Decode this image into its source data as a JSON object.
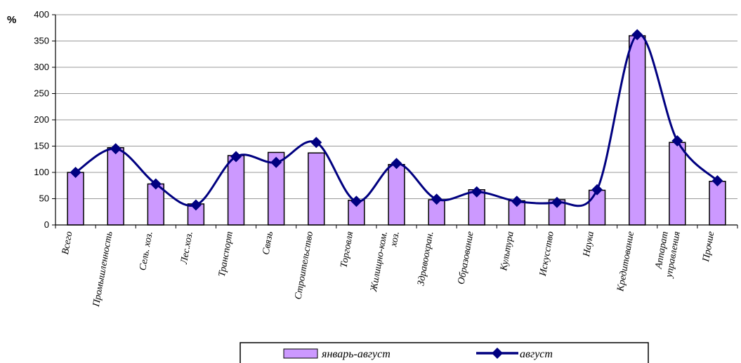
{
  "chart_data": {
    "type": "bar",
    "ylabel": "%",
    "ylim": [
      0,
      400
    ],
    "yticks": [
      0,
      50,
      100,
      150,
      200,
      250,
      300,
      350,
      400
    ],
    "grid": true,
    "legend_position": "bottom",
    "categories": [
      "Всего",
      "Промышленность",
      "Сель. хоз.",
      "Лес.хоз.",
      "Транспорт",
      "Связь",
      "Строительство",
      "Торговля",
      "Жилищно-ком. хоз.",
      "Здравоохран.",
      "Образование",
      "Культура",
      "Искусство",
      "Наука",
      "Кредитование",
      "Аппарат управления",
      "Прочие"
    ],
    "category_lines": [
      [
        "Всего"
      ],
      [
        "Промышленность"
      ],
      [
        "Сель. хоз."
      ],
      [
        "Лес.хоз."
      ],
      [
        "Транспорт"
      ],
      [
        "Связь"
      ],
      [
        "Строительство"
      ],
      [
        "Торговля"
      ],
      [
        "Жилищно-ком.",
        "хоз."
      ],
      [
        "Здравоохран."
      ],
      [
        "Образование"
      ],
      [
        "Культура"
      ],
      [
        "Искусство"
      ],
      [
        "Наука"
      ],
      [
        "Кредитование"
      ],
      [
        "Аппарат",
        "управления"
      ],
      [
        "Прочие"
      ]
    ],
    "series": [
      {
        "name": "январь-август",
        "kind": "bar",
        "color": "#cc99ff",
        "values": [
          100,
          147,
          78,
          40,
          132,
          138,
          137,
          47,
          115,
          48,
          67,
          46,
          48,
          66,
          360,
          157,
          83
        ]
      },
      {
        "name": "август",
        "kind": "line",
        "color": "#000080",
        "values": [
          100,
          145,
          78,
          38,
          130,
          119,
          157,
          45,
          117,
          49,
          63,
          45,
          43,
          67,
          362,
          160,
          84
        ]
      }
    ]
  }
}
